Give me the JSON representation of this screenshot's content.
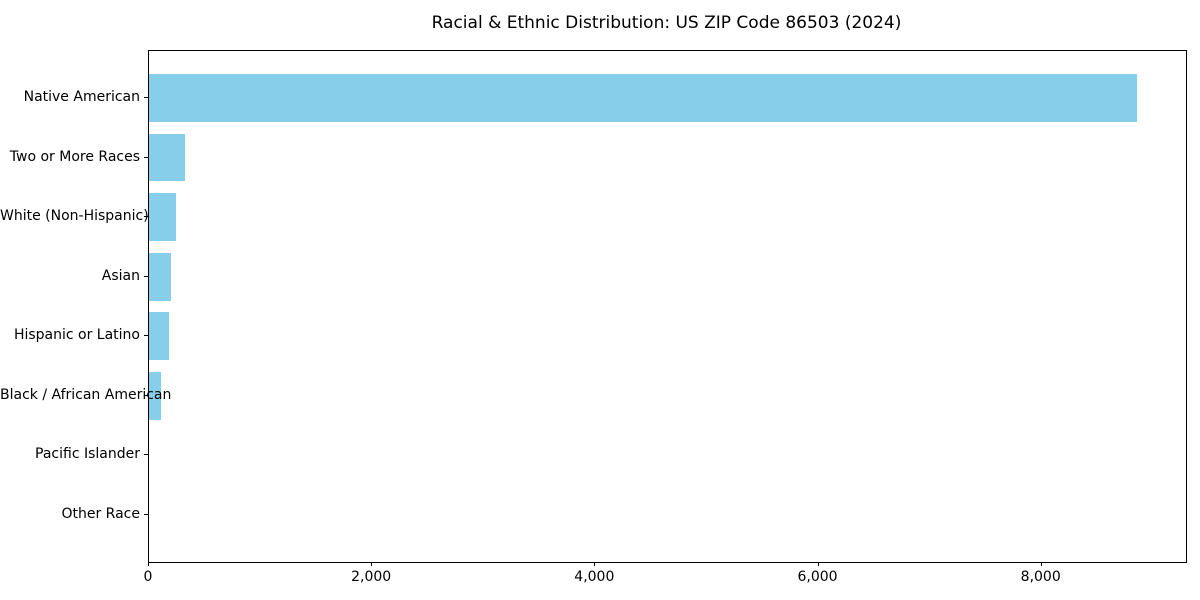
{
  "chart_data": {
    "type": "bar",
    "orientation": "horizontal",
    "title": "Racial & Ethnic Distribution: US ZIP Code 86503 (2024)",
    "categories": [
      "Native American",
      "Two or More Races",
      "White (Non-Hispanic)",
      "Asian",
      "Hispanic or Latino",
      "Black / African American",
      "Pacific Islander",
      "Other Race"
    ],
    "values": [
      8850,
      320,
      240,
      200,
      180,
      110,
      0,
      0
    ],
    "xlabel": "",
    "ylabel": "",
    "xlim": [
      0,
      9293
    ],
    "xticks": [
      0,
      2000,
      4000,
      6000,
      8000
    ],
    "xtick_labels": [
      "0",
      "2,000",
      "4,000",
      "6,000",
      "8,000"
    ],
    "bar_color": "#87CEEB",
    "spine_color": "#000000",
    "text_color": "#000000",
    "grid": false,
    "legend": null
  }
}
